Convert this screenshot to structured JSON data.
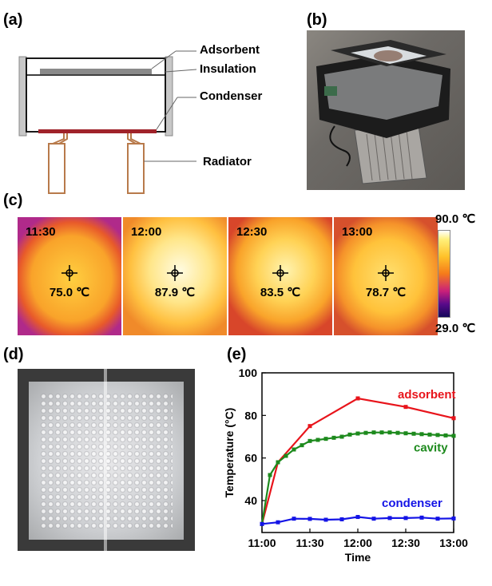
{
  "panels": {
    "a": "(a)",
    "b": "(b)",
    "c": "(c)",
    "d": "(d)",
    "e": "(e)"
  },
  "diagram": {
    "labels": {
      "adsorbent": "Adsorbent",
      "insulation": "Insulation",
      "condenser": "Condenser",
      "radiator": "Radiator"
    }
  },
  "thermal_images": [
    {
      "time": "11:30",
      "temp": "75.0 ℃"
    },
    {
      "time": "12:00",
      "temp": "87.9 ℃"
    },
    {
      "time": "12:30",
      "temp": "83.5 ℃"
    },
    {
      "time": "13:00",
      "temp": "78.7 ℃"
    }
  ],
  "colorbar": {
    "max_label": "90.0 ℃",
    "min_label": "29.0 ℃"
  },
  "chart_data": {
    "type": "line",
    "xlabel": "Time",
    "ylabel": "Temperature (°C)",
    "x_ticks": [
      "11:00",
      "11:30",
      "12:00",
      "12:30",
      "13:00"
    ],
    "x_range_hours": [
      11.0,
      13.0
    ],
    "ylim": [
      25,
      100
    ],
    "y_ticks": [
      40,
      60,
      80,
      100
    ],
    "legend_placement": "inline labels near series",
    "series": [
      {
        "name": "adsorbent",
        "color": "#e8141b",
        "x": [
          "11:00",
          "11:10",
          "11:30",
          "12:00",
          "12:30",
          "13:00"
        ],
        "values": [
          29,
          58,
          75,
          88,
          84,
          78.7
        ]
      },
      {
        "name": "cavity",
        "color": "#1d8a1d",
        "x": [
          "11:00",
          "11:05",
          "11:10",
          "11:15",
          "11:20",
          "11:25",
          "11:30",
          "11:35",
          "11:40",
          "11:45",
          "11:50",
          "11:55",
          "12:00",
          "12:05",
          "12:10",
          "12:15",
          "12:20",
          "12:25",
          "12:30",
          "12:35",
          "12:40",
          "12:45",
          "12:50",
          "12:55",
          "13:00"
        ],
        "values": [
          29,
          52,
          58,
          61,
          64,
          66,
          68,
          68.5,
          69,
          69.5,
          70,
          71,
          71.5,
          71.8,
          72,
          72,
          72,
          71.8,
          71.6,
          71.4,
          71.2,
          71,
          70.8,
          70.6,
          70.4
        ]
      },
      {
        "name": "condenser",
        "color": "#1414e6",
        "x": [
          "11:00",
          "11:10",
          "11:20",
          "11:30",
          "11:40",
          "11:50",
          "12:00",
          "12:10",
          "12:20",
          "12:30",
          "12:40",
          "12:50",
          "13:00"
        ],
        "values": [
          29,
          29.8,
          31.5,
          31.4,
          31.0,
          31.2,
          32.3,
          31.5,
          31.8,
          31.8,
          32.0,
          31.5,
          31.6
        ]
      }
    ]
  }
}
